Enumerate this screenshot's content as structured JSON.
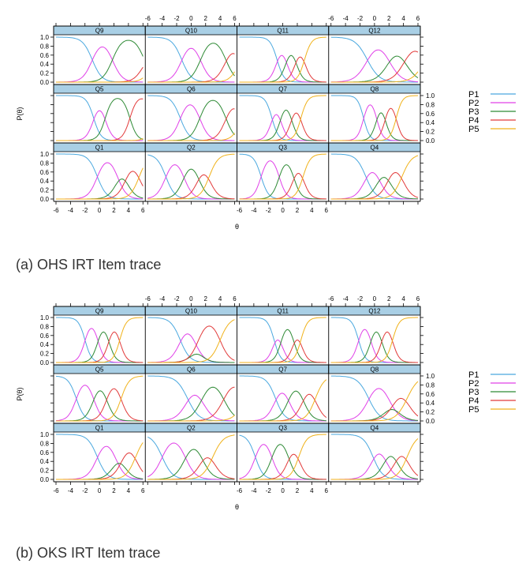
{
  "colors": {
    "strip": "#a9cfe5",
    "P1": "#4aa8df",
    "P2": "#e040e8",
    "P3": "#2e8a35",
    "P4": "#e23a3a",
    "P5": "#f0b21a"
  },
  "chart_data": [
    {
      "type": "line",
      "title": "",
      "caption": "(a)   OHS IRT Item trace",
      "xlabel": "θ",
      "ylabel": "P(θ)",
      "x_ticks": [
        "-6",
        "-4",
        "-2",
        "0",
        "2",
        "4",
        "6"
      ],
      "y_ticks": [
        "0.0",
        "0.2",
        "0.4",
        "0.6",
        "0.8",
        "1.0"
      ],
      "xlim": [
        -6,
        6
      ],
      "ylim": [
        0,
        1
      ],
      "series_names": [
        "P1",
        "P2",
        "P3",
        "P4",
        "P5"
      ],
      "legend": "right",
      "grid": false,
      "panels": [
        {
          "label": "Q9",
          "a": 1.5,
          "b": [
            -1.0,
            1.8,
            6.2,
            7.5
          ]
        },
        {
          "label": "Q10",
          "a": 1.5,
          "b": [
            -1.3,
            1.3,
            4.8,
            6.8
          ]
        },
        {
          "label": "Q11",
          "a": 2.1,
          "b": [
            -0.8,
            0.5,
            1.8,
            3.0
          ]
        },
        {
          "label": "Q12",
          "a": 1.2,
          "b": [
            -1.0,
            2.0,
            4.2,
            7.0
          ]
        },
        {
          "label": "Q5",
          "a": 2.0,
          "b": [
            -0.8,
            0.8,
            4.2,
            7.5
          ]
        },
        {
          "label": "Q6",
          "a": 1.6,
          "b": [
            -1.5,
            1.2,
            4.8,
            7.0
          ]
        },
        {
          "label": "Q7",
          "a": 2.2,
          "b": [
            -1.5,
            -0.3,
            1.2,
            2.5
          ]
        },
        {
          "label": "Q8",
          "a": 2.4,
          "b": [
            -1.5,
            0.3,
            1.5,
            3.0
          ]
        },
        {
          "label": "Q1",
          "a": 1.6,
          "b": [
            -0.3,
            2.5,
            3.7,
            5.5
          ]
        },
        {
          "label": "Q2",
          "a": 1.6,
          "b": [
            -3.5,
            -1.0,
            1.0,
            2.5
          ]
        },
        {
          "label": "Q3",
          "a": 2.0,
          "b": [
            -3.0,
            -0.5,
            1.5,
            2.8
          ]
        },
        {
          "label": "Q4",
          "a": 1.5,
          "b": [
            -1.2,
            0.6,
            2.0,
            3.8
          ]
        }
      ]
    },
    {
      "type": "line",
      "title": "",
      "caption": "(b)  OKS IRT Item trace",
      "xlabel": "θ",
      "ylabel": "P(θ)",
      "x_ticks": [
        "-6",
        "-4",
        "-2",
        "0",
        "2",
        "4",
        "6"
      ],
      "y_ticks": [
        "0.0",
        "0.2",
        "0.4",
        "0.6",
        "0.8",
        "1.0"
      ],
      "xlim": [
        -6,
        6
      ],
      "ylim": [
        0,
        1
      ],
      "series_names": [
        "P1",
        "P2",
        "P3",
        "P4",
        "P5"
      ],
      "legend": "right",
      "grid": false,
      "panels": [
        {
          "label": "Q9",
          "a": 2.2,
          "b": [
            -2.0,
            -0.2,
            1.3,
            2.8
          ]
        },
        {
          "label": "Q10",
          "a": 1.5,
          "b": [
            -1.5,
            0.5,
            1.0,
            4.0
          ]
        },
        {
          "label": "Q11",
          "a": 2.2,
          "b": [
            -1.2,
            -0.2,
            1.5,
            2.5
          ]
        },
        {
          "label": "Q12",
          "a": 2.2,
          "b": [
            -2.2,
            -0.5,
            1.0,
            2.5
          ]
        },
        {
          "label": "Q5",
          "a": 1.8,
          "b": [
            -3.2,
            -0.8,
            1.0,
            3.0
          ]
        },
        {
          "label": "Q6",
          "a": 1.3,
          "b": [
            -0.5,
            1.5,
            4.5,
            7.5
          ]
        },
        {
          "label": "Q7",
          "a": 1.6,
          "b": [
            -1.0,
            0.8,
            2.8,
            4.5
          ]
        },
        {
          "label": "Q8",
          "a": 1.3,
          "b": [
            -0.8,
            2.0,
            2.8,
            4.5
          ]
        },
        {
          "label": "Q1",
          "a": 1.5,
          "b": [
            -0.3,
            2.2,
            3.2,
            5.0
          ]
        },
        {
          "label": "Q2",
          "a": 1.4,
          "b": [
            -4.0,
            -0.8,
            1.5,
            3.0
          ]
        },
        {
          "label": "Q3",
          "a": 1.8,
          "b": [
            -3.8,
            -1.5,
            0.8,
            2.2
          ]
        },
        {
          "label": "Q4",
          "a": 1.5,
          "b": [
            -0.2,
            1.5,
            3.0,
            4.5
          ]
        }
      ]
    }
  ]
}
